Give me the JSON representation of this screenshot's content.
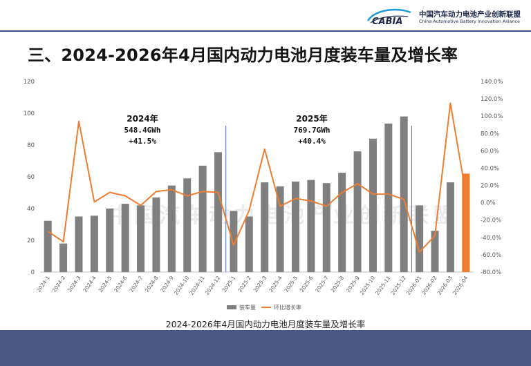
{
  "header": {
    "logo_text": "CABIA",
    "org_cn": "中国汽车动力电池产业创新联盟",
    "org_en": "China Automotive Battery Innovation Alliance"
  },
  "page_title": "三、2024-2026年4月国内动力电池月度装车量及增长率",
  "watermark": "中国汽车动力电池产业创新联盟",
  "caption": "2024-2026年4月国内动力电池月度装车量及增长率",
  "chart_data": {
    "type": "bar",
    "categories": [
      "2024-1",
      "2024-2",
      "2024-3",
      "2024-4",
      "2024-5",
      "2024-6",
      "2024-7",
      "2024-8",
      "2024-9",
      "2024-10",
      "2024-11",
      "2024-12",
      "2025-1",
      "2025-2",
      "2025-3",
      "2025-4",
      "2025-5",
      "2025-6",
      "2025-7",
      "2025-8",
      "2025-9",
      "2025-10",
      "2025-11",
      "2025-12",
      "2026-01",
      "2026-02",
      "2026-03",
      "2026-04"
    ],
    "series": [
      {
        "name": "装车量",
        "type": "bar",
        "axis": "left",
        "values": [
          32.3,
          18.0,
          35.0,
          35.5,
          40.0,
          43.0,
          42.0,
          47.0,
          54.5,
          59.0,
          67.0,
          75.5,
          38.5,
          35.0,
          56.5,
          54.0,
          57.0,
          58.0,
          56.0,
          62.5,
          76.0,
          84.0,
          93.5,
          98.0,
          42.0,
          26.0,
          56.5,
          62.0
        ]
      },
      {
        "name": "环比增长率",
        "type": "line",
        "axis": "right",
        "values": [
          -33,
          -45,
          94,
          1,
          12,
          8,
          -3,
          13,
          15,
          8,
          13,
          12,
          -49,
          -9,
          62,
          -4,
          5,
          2,
          -4,
          12,
          22,
          10,
          10,
          4,
          -57,
          -38,
          115,
          10
        ]
      }
    ],
    "y_left": {
      "min": 0,
      "max": 120,
      "ticks": [
        0,
        20,
        40,
        60,
        80,
        100,
        120
      ]
    },
    "y_right": {
      "min": -80,
      "max": 140,
      "ticks": [
        "-80.0%",
        "-60.0%",
        "-40.0%",
        "-20.0%",
        "0.0%",
        "20.0%",
        "40.0%",
        "60.0%",
        "80.0%",
        "100.0%",
        "120.0%",
        "140.0%"
      ]
    },
    "highlight_index": 27,
    "annotations": [
      {
        "year": "2024年",
        "total": "548.4GWh",
        "growth": "+41.5%"
      },
      {
        "year": "2025年",
        "total": "769.7GWh",
        "growth": "+40.4%"
      }
    ],
    "separators_after": [
      "2024-12",
      "2025-12"
    ],
    "legend": {
      "position": "bottom",
      "items": [
        "装车量",
        "环比增长率"
      ]
    },
    "colors": {
      "bar": "#7f7f7f",
      "bar_highlight": "#ed7d31",
      "line": "#ed7d31",
      "separator": "#4472c4",
      "header_rule": "#3e4f86",
      "footer": "#4a5683"
    }
  }
}
